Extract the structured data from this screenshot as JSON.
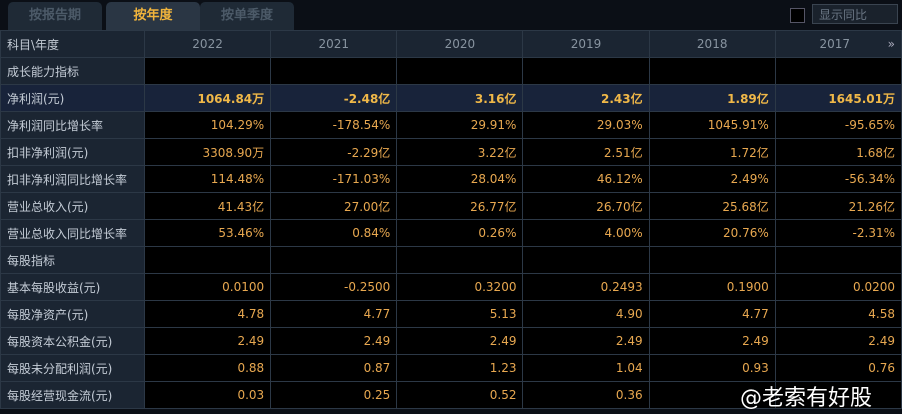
{
  "tabs": [
    "按报告期",
    "按年度",
    "按单季度"
  ],
  "active_tab": 1,
  "show_yoy": {
    "label": "显示同比",
    "checked": false
  },
  "header": {
    "corner": "科目\\年度",
    "years": [
      "2022",
      "2021",
      "2020",
      "2019",
      "2018",
      "2017"
    ],
    "more_icon": "»"
  },
  "rows": [
    {
      "label": "成长能力指标",
      "section": true,
      "values": [
        "",
        "",
        "",
        "",
        "",
        ""
      ]
    },
    {
      "label": "净利润(元)",
      "bold": true,
      "values": [
        "1064.84万",
        "-2.48亿",
        "3.16亿",
        "2.43亿",
        "1.89亿",
        "1645.01万"
      ]
    },
    {
      "label": "净利润同比增长率",
      "values": [
        "104.29%",
        "-178.54%",
        "29.91%",
        "29.03%",
        "1045.91%",
        "-95.65%"
      ]
    },
    {
      "label": "扣非净利润(元)",
      "values": [
        "3308.90万",
        "-2.29亿",
        "3.22亿",
        "2.51亿",
        "1.72亿",
        "1.68亿"
      ]
    },
    {
      "label": "扣非净利润同比增长率",
      "values": [
        "114.48%",
        "-171.03%",
        "28.04%",
        "46.12%",
        "2.49%",
        "-56.34%"
      ]
    },
    {
      "label": "营业总收入(元)",
      "values": [
        "41.43亿",
        "27.00亿",
        "26.77亿",
        "26.70亿",
        "25.68亿",
        "21.26亿"
      ]
    },
    {
      "label": "营业总收入同比增长率",
      "values": [
        "53.46%",
        "0.84%",
        "0.26%",
        "4.00%",
        "20.76%",
        "-2.31%"
      ]
    },
    {
      "label": "每股指标",
      "section": true,
      "values": [
        "",
        "",
        "",
        "",
        "",
        ""
      ]
    },
    {
      "label": "基本每股收益(元)",
      "values": [
        "0.0100",
        "-0.2500",
        "0.3200",
        "0.2493",
        "0.1900",
        "0.0200"
      ]
    },
    {
      "label": "每股净资产(元)",
      "values": [
        "4.78",
        "4.77",
        "5.13",
        "4.90",
        "4.77",
        "4.58"
      ]
    },
    {
      "label": "每股资本公积金(元)",
      "values": [
        "2.49",
        "2.49",
        "2.49",
        "2.49",
        "2.49",
        "2.49"
      ]
    },
    {
      "label": "每股未分配利润(元)",
      "values": [
        "0.88",
        "0.87",
        "1.23",
        "1.04",
        "0.93",
        "0.76"
      ]
    },
    {
      "label": "每股经营现金流(元)",
      "values": [
        "0.03",
        "0.25",
        "0.52",
        "0.36",
        "",
        ""
      ]
    }
  ],
  "watermark": "@老索有好股"
}
